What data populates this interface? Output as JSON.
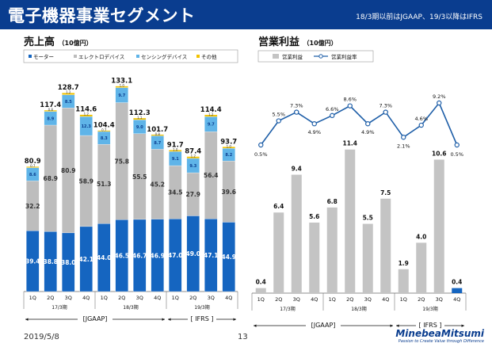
{
  "header": {
    "title": "電子機器事業セグメント",
    "note": "18/3期以前はJGAAP、19/3以降はIFRS"
  },
  "footer": {
    "date": "2019/5/8",
    "page": "13"
  },
  "logo": {
    "name": "MinebeaMitsumi",
    "tagline": "Passion to Create Value through Difference"
  },
  "colors": {
    "banner": "#0a3d8f",
    "motor": "#1565c0",
    "electro": "#bdbdbd",
    "sensing": "#5fb4e8",
    "other": "#f2c200",
    "profit_bar": "#c4c4c4",
    "line": "#1f5fa8"
  },
  "chart_data": [
    {
      "type": "bar",
      "stacked": true,
      "title": "売上高",
      "unit": "（10億円）",
      "categories": [
        "1Q",
        "2Q",
        "3Q",
        "4Q",
        "1Q",
        "2Q",
        "3Q",
        "4Q",
        "1Q",
        "2Q",
        "3Q",
        "4Q"
      ],
      "period_labels": [
        "17/3期",
        "18/3期",
        "19/3期"
      ],
      "standard_labels": [
        "[JGAAP]",
        "[ IFRS ]"
      ],
      "series": [
        {
          "name": "モーター",
          "values": [
            39.4,
            38.8,
            38.0,
            42.1,
            44.0,
            46.5,
            46.7,
            46.9,
            47.0,
            49.0,
            47.1,
            44.9
          ]
        },
        {
          "name": "エレクトロデバイス",
          "values": [
            32.2,
            68.9,
            80.9,
            58.9,
            51.3,
            75.8,
            55.5,
            45.2,
            34.5,
            27.9,
            56.4,
            39.6
          ]
        },
        {
          "name": "センシングデバイス",
          "values": [
            8.6,
            8.9,
            8.5,
            12.3,
            8.3,
            9.7,
            9.0,
            8.7,
            9.1,
            9.3,
            9.7,
            8.2
          ]
        },
        {
          "name": "その他",
          "values": [
            0.7,
            0.8,
            1.2,
            1.2,
            0.7,
            1.0,
            1.1,
            0.8,
            1.0,
            1.2,
            1.2,
            1.0
          ]
        }
      ],
      "totals": [
        80.9,
        117.4,
        128.7,
        114.6,
        104.4,
        133.1,
        112.3,
        101.7,
        91.7,
        87.4,
        114.4,
        93.7
      ]
    },
    {
      "type": "bar",
      "title": "営業利益",
      "unit": "（10億円）",
      "categories": [
        "1Q",
        "2Q",
        "3Q",
        "4Q",
        "1Q",
        "2Q",
        "3Q",
        "4Q",
        "1Q",
        "2Q",
        "3Q",
        "4Q"
      ],
      "period_labels": [
        "17/3期",
        "18/3期",
        "19/3期"
      ],
      "standard_labels": [
        "[JGAAP]",
        "[ IFRS ]"
      ],
      "series": [
        {
          "name": "営業利益",
          "values": [
            0.4,
            6.4,
            9.4,
            5.6,
            6.8,
            11.4,
            5.5,
            7.5,
            1.9,
            4.0,
            10.6,
            0.4
          ]
        },
        {
          "name": "営業利益率",
          "type": "line",
          "values": [
            0.5,
            5.5,
            7.3,
            4.9,
            6.6,
            8.6,
            4.9,
            7.3,
            2.1,
            4.6,
            9.2,
            0.5
          ],
          "labels": [
            "0.5%",
            "5.5%",
            "7.3%",
            "4.9%",
            "6.6%",
            "8.6%",
            "4.9%",
            "7.3%",
            "2.1%",
            "4.6%",
            "9.2%",
            "0.5%"
          ]
        }
      ]
    }
  ]
}
